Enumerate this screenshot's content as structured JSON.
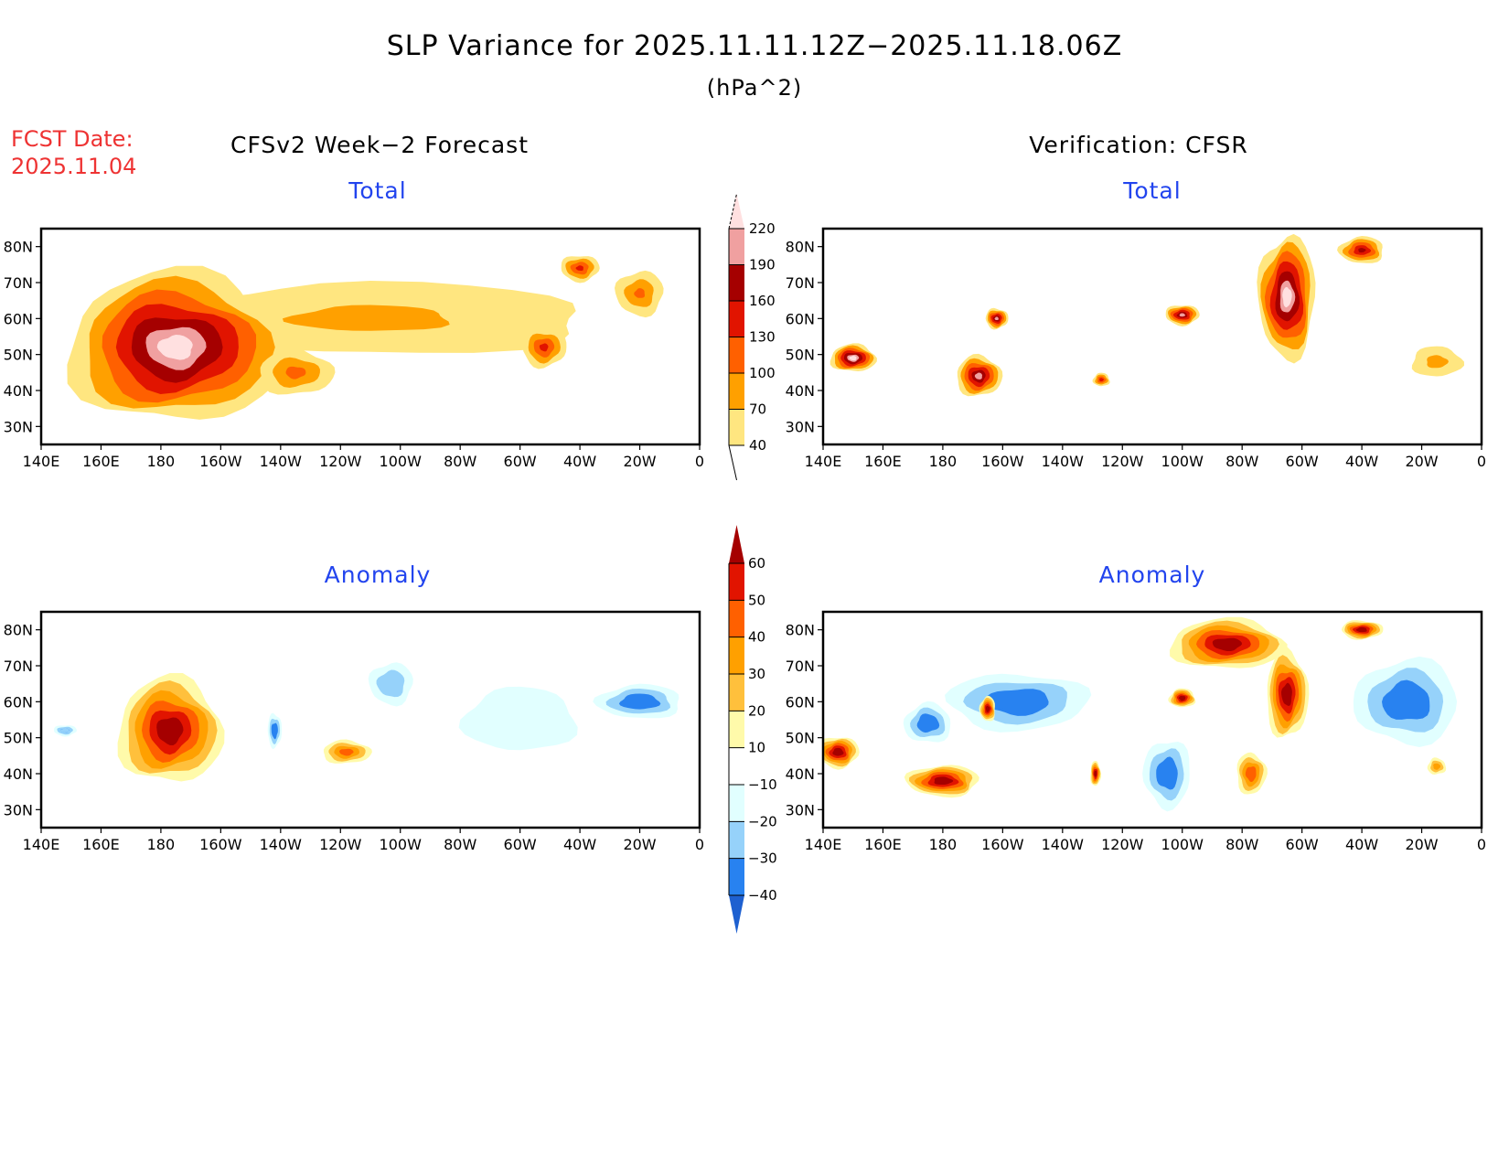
{
  "header": {
    "title": "SLP Variance for 2025.11.11.12Z−2025.11.18.06Z",
    "units": "(hPa^2)",
    "fcst_label": "FCST Date:",
    "fcst_date": "2025.11.04",
    "left_column_title": "CFSv2 Week−2 Forecast",
    "right_column_title": "Verification: CFSR"
  },
  "chart_data": [
    {
      "type": "heatmap",
      "id": "forecast-total",
      "title": "Total",
      "column": "CFSv2 Week−2 Forecast",
      "x_ticks": [
        "140E",
        "160E",
        "180",
        "160W",
        "140W",
        "120W",
        "100W",
        "80W",
        "60W",
        "40W",
        "20W",
        "0"
      ],
      "y_ticks": [
        "30N",
        "40N",
        "50N",
        "60N",
        "70N",
        "80N"
      ],
      "xlim_lon_east": [
        140,
        360
      ],
      "ylim_lat": [
        25,
        85
      ],
      "scale": "total",
      "features": [
        {
          "lon": 185,
          "lat": 52,
          "rx": 38,
          "ry": 22,
          "value": 235
        },
        {
          "lon": 225,
          "lat": 45,
          "rx": 14,
          "ry": 7,
          "value": 110
        },
        {
          "lon": 308,
          "lat": 52,
          "rx": 8,
          "ry": 6,
          "value": 140
        },
        {
          "lon": 320,
          "lat": 74,
          "rx": 7,
          "ry": 4,
          "value": 140
        },
        {
          "lon": 340,
          "lat": 67,
          "rx": 9,
          "ry": 7,
          "value": 105
        },
        {
          "lon": 250,
          "lat": 60,
          "rx": 90,
          "ry": 12,
          "value": 75
        }
      ]
    },
    {
      "type": "heatmap",
      "id": "verification-total",
      "title": "Total",
      "column": "Verification: CFSR",
      "x_ticks": [
        "140E",
        "160E",
        "180",
        "160W",
        "140W",
        "120W",
        "100W",
        "80W",
        "60W",
        "40W",
        "20W",
        "0"
      ],
      "y_ticks": [
        "30N",
        "40N",
        "50N",
        "60N",
        "70N",
        "80N"
      ],
      "xlim_lon_east": [
        140,
        360
      ],
      "ylim_lat": [
        25,
        85
      ],
      "scale": "total",
      "features": [
        {
          "lon": 150,
          "lat": 49,
          "rx": 8,
          "ry": 4,
          "value": 230
        },
        {
          "lon": 192,
          "lat": 44,
          "rx": 8,
          "ry": 6,
          "value": 200
        },
        {
          "lon": 198,
          "lat": 60,
          "rx": 4,
          "ry": 3,
          "value": 200
        },
        {
          "lon": 260,
          "lat": 61,
          "rx": 6,
          "ry": 3,
          "value": 200
        },
        {
          "lon": 295,
          "lat": 66,
          "rx": 10,
          "ry": 18,
          "value": 230
        },
        {
          "lon": 320,
          "lat": 79,
          "rx": 8,
          "ry": 4,
          "value": 170
        },
        {
          "lon": 233,
          "lat": 43,
          "rx": 3,
          "ry": 2,
          "value": 150
        },
        {
          "lon": 345,
          "lat": 48,
          "rx": 10,
          "ry": 5,
          "value": 80
        }
      ]
    },
    {
      "type": "heatmap",
      "id": "forecast-anomaly",
      "title": "Anomaly",
      "column": "CFSv2 Week−2 Forecast",
      "x_ticks": [
        "140E",
        "160E",
        "180",
        "160W",
        "140W",
        "120W",
        "100W",
        "80W",
        "60W",
        "40W",
        "20W",
        "0"
      ],
      "y_ticks": [
        "30N",
        "40N",
        "50N",
        "60N",
        "70N",
        "80N"
      ],
      "xlim_lon_east": [
        140,
        360
      ],
      "ylim_lat": [
        25,
        85
      ],
      "scale": "anomaly",
      "features": [
        {
          "lon": 183,
          "lat": 52,
          "rx": 20,
          "ry": 17,
          "value": 65
        },
        {
          "lon": 242,
          "lat": 46,
          "rx": 10,
          "ry": 4,
          "value": 40
        },
        {
          "lon": 218,
          "lat": 52,
          "rx": 3,
          "ry": 6,
          "value": -35
        },
        {
          "lon": 148,
          "lat": 52,
          "rx": 5,
          "ry": 2,
          "value": -30
        },
        {
          "lon": 257,
          "lat": 65,
          "rx": 10,
          "ry": 8,
          "value": -25
        },
        {
          "lon": 340,
          "lat": 60,
          "rx": 18,
          "ry": 6,
          "value": -35
        },
        {
          "lon": 300,
          "lat": 55,
          "rx": 30,
          "ry": 14,
          "value": -15
        }
      ]
    },
    {
      "type": "heatmap",
      "id": "verification-anomaly",
      "title": "Anomaly",
      "column": "Verification: CFSR",
      "x_ticks": [
        "140E",
        "160E",
        "180",
        "160W",
        "140W",
        "120W",
        "100W",
        "80W",
        "60W",
        "40W",
        "20W",
        "0"
      ],
      "y_ticks": [
        "30N",
        "40N",
        "50N",
        "60N",
        "70N",
        "80N"
      ],
      "xlim_lon_east": [
        140,
        360
      ],
      "ylim_lat": [
        25,
        85
      ],
      "scale": "anomaly",
      "features": [
        {
          "lon": 275,
          "lat": 76,
          "rx": 22,
          "ry": 8,
          "value": 65
        },
        {
          "lon": 295,
          "lat": 62,
          "rx": 8,
          "ry": 14,
          "value": 65
        },
        {
          "lon": 320,
          "lat": 80,
          "rx": 8,
          "ry": 3,
          "value": 65
        },
        {
          "lon": 145,
          "lat": 46,
          "rx": 8,
          "ry": 5,
          "value": 65
        },
        {
          "lon": 180,
          "lat": 38,
          "rx": 14,
          "ry": 5,
          "value": 65
        },
        {
          "lon": 195,
          "lat": 58,
          "rx": 3,
          "ry": 4,
          "value": 65
        },
        {
          "lon": 260,
          "lat": 61,
          "rx": 5,
          "ry": 3,
          "value": 65
        },
        {
          "lon": 231,
          "lat": 40,
          "rx": 2,
          "ry": 4,
          "value": 65
        },
        {
          "lon": 283,
          "lat": 40,
          "rx": 6,
          "ry": 7,
          "value": 45
        },
        {
          "lon": 205,
          "lat": 60,
          "rx": 30,
          "ry": 10,
          "value": -35
        },
        {
          "lon": 255,
          "lat": 40,
          "rx": 10,
          "ry": 12,
          "value": -35
        },
        {
          "lon": 335,
          "lat": 60,
          "rx": 22,
          "ry": 15,
          "value": -35
        },
        {
          "lon": 175,
          "lat": 54,
          "rx": 10,
          "ry": 7,
          "value": -35
        },
        {
          "lon": 345,
          "lat": 42,
          "rx": 4,
          "ry": 3,
          "value": 30
        }
      ]
    }
  ],
  "colorbars": {
    "total": {
      "levels": [
        "40",
        "70",
        "100",
        "130",
        "160",
        "190",
        "220"
      ],
      "colors": [
        "#ffe680",
        "#ffa000",
        "#ff6000",
        "#e11400",
        "#a50000",
        "#f0a0a0",
        "#ffe0e0"
      ]
    },
    "anomaly": {
      "levels": [
        "−40",
        "−30",
        "−20",
        "−10",
        "10",
        "20",
        "30",
        "40",
        "50",
        "60"
      ],
      "colors": [
        "#1e60d0",
        "#2882f0",
        "#96d2fa",
        "#e1ffff",
        "#ffffff",
        "#fffaaa",
        "#ffc03c",
        "#ffa000",
        "#ff6000",
        "#e11400",
        "#a50000"
      ]
    }
  }
}
